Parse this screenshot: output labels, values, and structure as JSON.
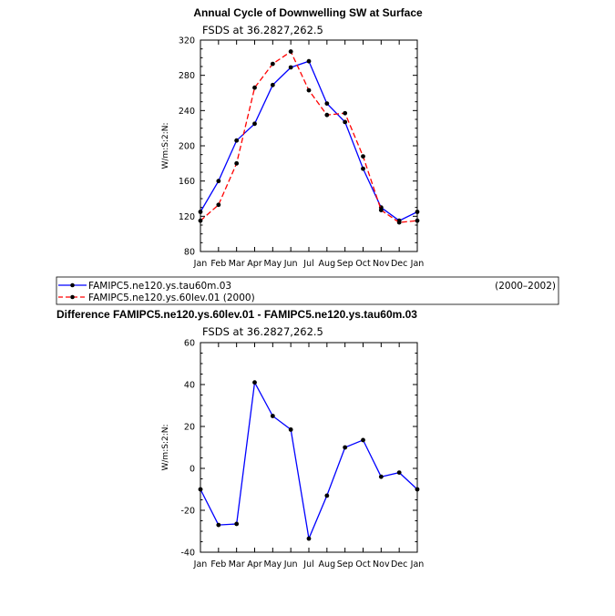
{
  "colors": {
    "series1": "#0000ff",
    "series2": "#ff0000",
    "markers": "#000000"
  },
  "legend": {
    "period_label": "(2000–2002)",
    "entries": [
      {
        "label": "FAMIPC5.ne120.ys.tau60m.03",
        "style": "solid",
        "color": "#0000ff"
      },
      {
        "label": "FAMIPC5.ne120.ys.60lev.01  (2000)",
        "style": "dashed",
        "color": "#ff0000"
      }
    ]
  },
  "chart_data": [
    {
      "type": "line",
      "title": "Annual Cycle of Downwelling SW at Surface",
      "subtitle": "FSDS at 36.2827,262.5",
      "xlabel": "",
      "ylabel": "W/m S 2 N",
      "ylabel_text": "W/m:S:2:N:",
      "categories": [
        "Jan",
        "Feb",
        "Mar",
        "Apr",
        "May",
        "Jun",
        "Jul",
        "Aug",
        "Sep",
        "Oct",
        "Nov",
        "Dec",
        "Jan"
      ],
      "ylim": [
        80,
        320
      ],
      "yticks": [
        80,
        120,
        160,
        200,
        240,
        280,
        320
      ],
      "series": [
        {
          "name": "FAMIPC5.ne120.ys.tau60m.03",
          "color": "#0000ff",
          "dash": false,
          "values": [
            125,
            160,
            206,
            225,
            269,
            289,
            296,
            248,
            227,
            174,
            130,
            115,
            125
          ]
        },
        {
          "name": "FAMIPC5.ne120.ys.60lev.01",
          "color": "#ff0000",
          "dash": true,
          "values": [
            115,
            133,
            180,
            266,
            293,
            307,
            263,
            235,
            237,
            188,
            127,
            113,
            115
          ]
        }
      ]
    },
    {
      "type": "line",
      "title": "Difference FAMIPC5.ne120.ys.60lev.01 - FAMIPC5.ne120.ys.tau60m.03",
      "subtitle": "FSDS at 36.2827,262.5",
      "xlabel": "",
      "ylabel_text": "W/m:S:2:N:",
      "categories": [
        "Jan",
        "Feb",
        "Mar",
        "Apr",
        "May",
        "Jun",
        "Jul",
        "Aug",
        "Sep",
        "Oct",
        "Nov",
        "Dec",
        "Jan"
      ],
      "ylim": [
        -40,
        60
      ],
      "yticks": [
        -40,
        -20,
        0,
        20,
        40,
        60
      ],
      "series": [
        {
          "name": "",
          "color": "#0000ff",
          "dash": false,
          "values": [
            -10,
            -27,
            -26.5,
            41,
            25,
            18.5,
            -33.5,
            -13,
            10,
            13.5,
            -4,
            -2,
            -10
          ]
        }
      ]
    }
  ]
}
